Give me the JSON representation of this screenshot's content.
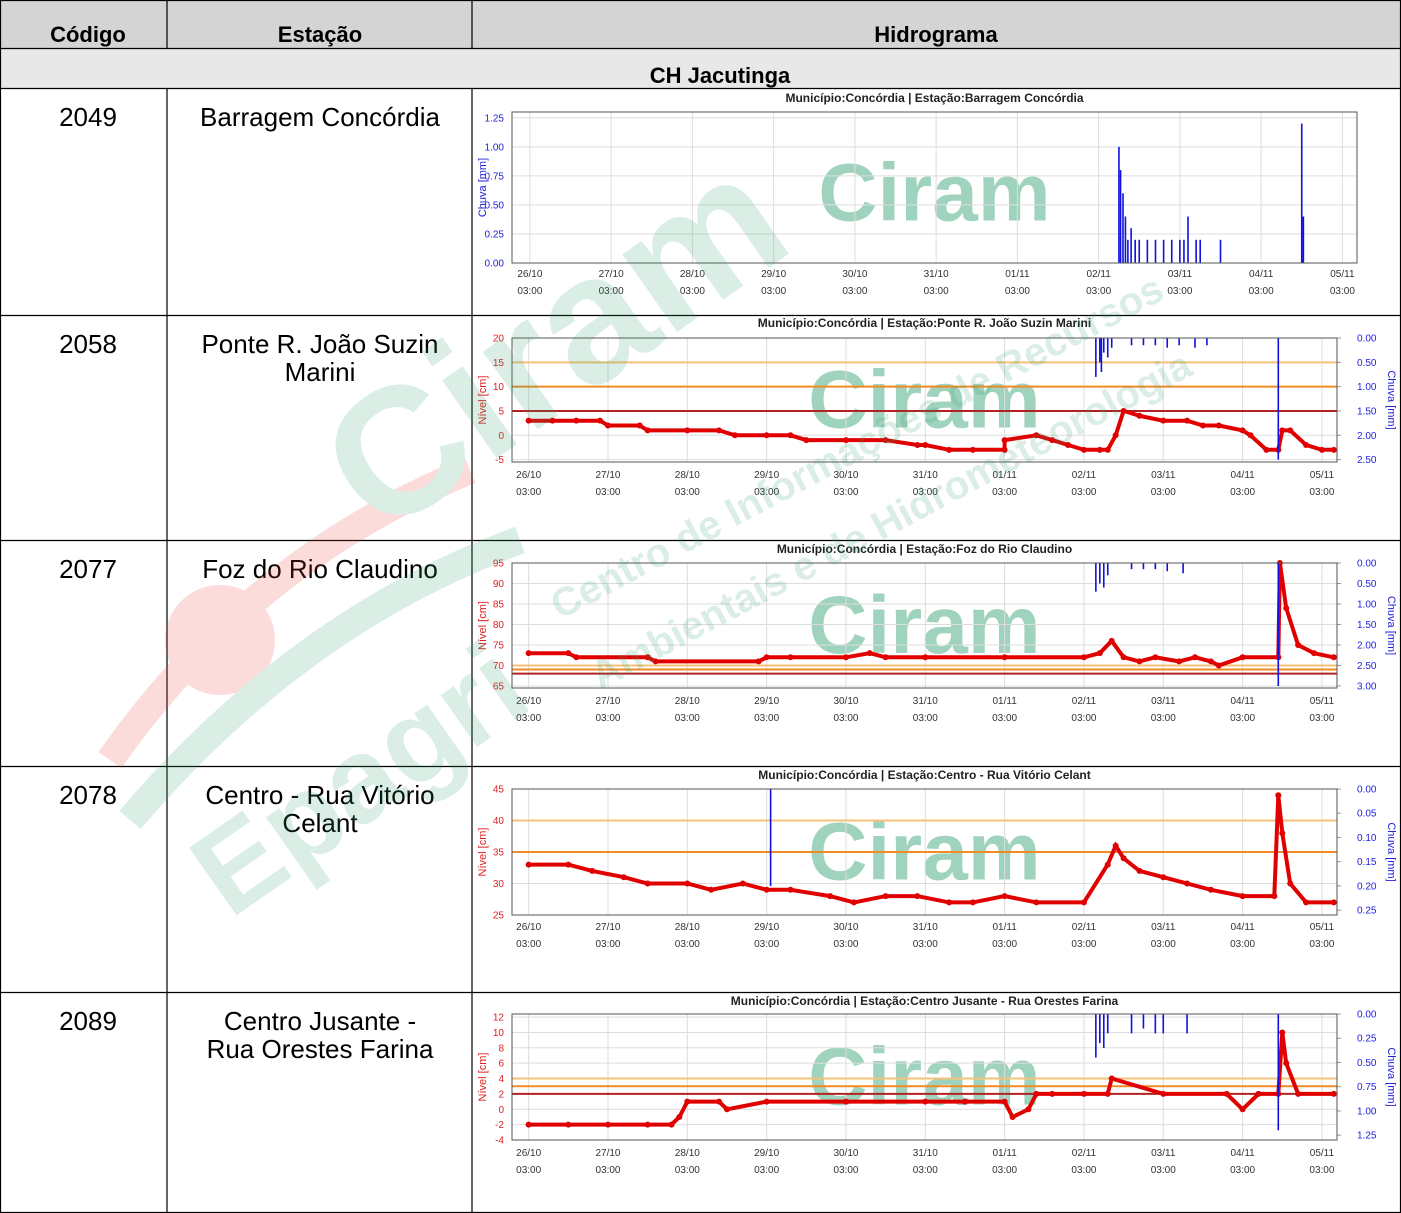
{
  "table": {
    "headers": [
      "Código",
      "Estação",
      "Hidrograma"
    ],
    "group": "CH Jacutinga",
    "rows": [
      {
        "code": "2049",
        "station": [
          "Barragem Concórdia"
        ]
      },
      {
        "code": "2058",
        "station": [
          "Ponte R. João Suzin",
          "Marini"
        ]
      },
      {
        "code": "2077",
        "station": [
          "Foz do Rio Claudino"
        ]
      },
      {
        "code": "2078",
        "station": [
          "Centro - Rua Vitório",
          "Celant"
        ]
      },
      {
        "code": "2089",
        "station": [
          "Centro Jusante -",
          "Rua Orestes Farina"
        ]
      }
    ]
  },
  "watermark": {
    "brand": "Epagri",
    "logo": "Ciram",
    "lines": [
      "Centro de Informações de Recursos",
      "Ambientais e de Hidrometeorologia"
    ]
  },
  "chart_data": [
    {
      "type": "line",
      "title": "Município:Concórdia | Estação:Barragem Concórdia",
      "watermark": "Ciram",
      "xlim": [
        -0.22,
        10.18
      ],
      "xticks": [
        {
          "value": 0,
          "label": "26/10",
          "time": "03:00"
        },
        {
          "value": 1,
          "label": "27/10",
          "time": "03:00"
        },
        {
          "value": 2,
          "label": "28/10",
          "time": "03:00"
        },
        {
          "value": 3,
          "label": "29/10",
          "time": "03:00"
        },
        {
          "value": 4,
          "label": "30/10",
          "time": "03:00"
        },
        {
          "value": 5,
          "label": "31/10",
          "time": "03:00"
        },
        {
          "value": 6,
          "label": "01/11",
          "time": "03:00"
        },
        {
          "value": 7,
          "label": "02/11",
          "time": "03:00"
        },
        {
          "value": 8,
          "label": "03/11",
          "time": "03:00"
        },
        {
          "value": 9,
          "label": "04/11",
          "time": "03:00"
        },
        {
          "value": 10,
          "label": "05/11",
          "time": "03:00"
        }
      ],
      "ylim": [
        0,
        1.3
      ],
      "yticks": [
        {
          "value": 0,
          "label": "0.00"
        },
        {
          "value": 0.25,
          "label": "0.25"
        },
        {
          "value": 0.5,
          "label": "0.50"
        },
        {
          "value": 0.75,
          "label": "0.75"
        },
        {
          "value": 1,
          "label": "1.00"
        },
        {
          "value": 1.25,
          "label": "1.25"
        }
      ],
      "y_label": "Chuva [mm]",
      "y_color": "#2222dd",
      "grid": true,
      "hlines": [],
      "series": [
        {
          "style": "bar",
          "color": "#1010e0",
          "x": [
            7.25,
            7.27,
            7.3,
            7.33,
            7.36,
            7.4,
            7.45,
            7.5,
            7.6,
            7.7,
            7.8,
            7.9,
            8.0,
            8.05,
            8.1,
            8.2,
            8.25,
            8.5,
            9.5,
            9.52
          ],
          "values": [
            1.0,
            0.8,
            0.6,
            0.4,
            0.2,
            0.3,
            0.2,
            0.2,
            0.2,
            0.2,
            0.2,
            0.2,
            0.2,
            0.2,
            0.4,
            0.2,
            0.2,
            0.2,
            1.2,
            0.4
          ]
        }
      ]
    },
    {
      "type": "line",
      "title": "Município:Concórdia | Estação:Ponte R. João Suzin Marini",
      "watermark": "Ciram",
      "xlim": [
        -0.21,
        10.19
      ],
      "xticks": [
        {
          "value": 0,
          "label": "26/10",
          "time": "03:00"
        },
        {
          "value": 1,
          "label": "27/10",
          "time": "03:00"
        },
        {
          "value": 2,
          "label": "28/10",
          "time": "03:00"
        },
        {
          "value": 3,
          "label": "29/10",
          "time": "03:00"
        },
        {
          "value": 4,
          "label": "30/10",
          "time": "03:00"
        },
        {
          "value": 5,
          "label": "31/10",
          "time": "03:00"
        },
        {
          "value": 6,
          "label": "01/11",
          "time": "03:00"
        },
        {
          "value": 7,
          "label": "02/11",
          "time": "03:00"
        },
        {
          "value": 8,
          "label": "03/11",
          "time": "03:00"
        },
        {
          "value": 9,
          "label": "04/11",
          "time": "03:00"
        },
        {
          "value": 10,
          "label": "05/11",
          "time": "03:00"
        }
      ],
      "ylim": [
        -5.5,
        20
      ],
      "yticks": [
        -5,
        0,
        5,
        10,
        15,
        20
      ],
      "y_label": "Nível [cm]",
      "y_color": "#e02020",
      "y2lim": [
        2.55,
        0
      ],
      "y2ticks": [
        {
          "value": 0,
          "label": "0.00"
        },
        {
          "value": 0.5,
          "label": "0.50"
        },
        {
          "value": 1,
          "label": "1.00"
        },
        {
          "value": 1.5,
          "label": "1.50"
        },
        {
          "value": 2,
          "label": "2.00"
        },
        {
          "value": 2.5,
          "label": "2.50"
        }
      ],
      "y2_label": "Chuva [mm]",
      "y2_color": "#2222dd",
      "grid": true,
      "hlines": [
        {
          "value": 15,
          "color": "#f5c27a"
        },
        {
          "value": 10,
          "color": "#f08a24"
        },
        {
          "value": 5,
          "color": "#b22222"
        }
      ],
      "series": [
        {
          "style": "points",
          "color": "#e00000",
          "x": [
            0,
            0.3,
            0.6,
            0.9,
            1.0,
            1.4,
            1.5,
            2.0,
            2.4,
            2.6,
            3.0,
            3.3,
            3.5,
            4.0,
            4.5,
            4.9,
            5.0,
            5.3,
            5.6,
            6.0,
            6.0,
            6.4,
            6.6,
            6.8,
            7.0,
            7.2,
            7.3,
            7.4,
            7.5,
            7.7,
            8.0,
            8.3,
            8.5,
            8.7,
            9.0,
            9.1,
            9.3,
            9.45,
            9.5,
            9.6,
            9.8,
            10.0,
            10.15
          ],
          "values": [
            3,
            3,
            3,
            3,
            2,
            2,
            1,
            1,
            1,
            0,
            0,
            0,
            -1,
            -1,
            -1,
            -2,
            -2,
            -3,
            -3,
            -3,
            -1,
            0,
            -1,
            -2,
            -3,
            -3,
            -3,
            0,
            5,
            4,
            3,
            3,
            2,
            2,
            1,
            0,
            -3,
            -3,
            1,
            1,
            -2,
            -3,
            -3
          ]
        },
        {
          "style": "bar",
          "axis": "y2",
          "color": "#1010e0",
          "x": [
            7.15,
            7.2,
            7.22,
            7.25,
            7.3,
            7.35,
            7.6,
            7.75,
            7.9,
            8.05,
            8.2,
            8.4,
            8.55,
            9.45
          ],
          "values": [
            0.8,
            0.5,
            0.7,
            0.3,
            0.4,
            0.2,
            0.15,
            0.15,
            0.15,
            0.2,
            0.15,
            0.2,
            0.15,
            2.5
          ]
        }
      ]
    },
    {
      "type": "line",
      "title": "Município:Concórdia | Estação:Foz do Rio Claudino",
      "watermark": "Ciram",
      "xlim": [
        -0.21,
        10.19
      ],
      "xticks": [
        {
          "value": 0,
          "label": "26/10",
          "time": "03:00"
        },
        {
          "value": 1,
          "label": "27/10",
          "time": "03:00"
        },
        {
          "value": 2,
          "label": "28/10",
          "time": "03:00"
        },
        {
          "value": 3,
          "label": "29/10",
          "time": "03:00"
        },
        {
          "value": 4,
          "label": "30/10",
          "time": "03:00"
        },
        {
          "value": 5,
          "label": "31/10",
          "time": "03:00"
        },
        {
          "value": 6,
          "label": "01/11",
          "time": "03:00"
        },
        {
          "value": 7,
          "label": "02/11",
          "time": "03:00"
        },
        {
          "value": 8,
          "label": "03/11",
          "time": "03:00"
        },
        {
          "value": 9,
          "label": "04/11",
          "time": "03:00"
        },
        {
          "value": 10,
          "label": "05/11",
          "time": "03:00"
        }
      ],
      "ylim": [
        64.5,
        95
      ],
      "yticks": [
        65,
        70,
        75,
        80,
        85,
        90,
        95
      ],
      "y_label": "Nível [cm]",
      "y_color": "#e02020",
      "y2lim": [
        3.05,
        0
      ],
      "y2ticks": [
        {
          "value": 0,
          "label": "0.00"
        },
        {
          "value": 0.5,
          "label": "0.50"
        },
        {
          "value": 1,
          "label": "1.00"
        },
        {
          "value": 1.5,
          "label": "1.50"
        },
        {
          "value": 2,
          "label": "2.00"
        },
        {
          "value": 2.5,
          "label": "2.50"
        },
        {
          "value": 3,
          "label": "3.00"
        }
      ],
      "y2_label": "Chuva [mm]",
      "y2_color": "#2222dd",
      "grid": true,
      "hlines": [
        {
          "value": 70,
          "color": "#f5c27a"
        },
        {
          "value": 69,
          "color": "#f08a24"
        },
        {
          "value": 68,
          "color": "#b22222"
        }
      ],
      "series": [
        {
          "style": "points",
          "color": "#e00000",
          "x": [
            0,
            0.5,
            0.6,
            1.5,
            1.6,
            2.9,
            3.0,
            3.3,
            4.0,
            4.3,
            4.5,
            5.0,
            6.0,
            7.0,
            7.2,
            7.35,
            7.5,
            7.7,
            7.9,
            8.2,
            8.4,
            8.6,
            8.7,
            9.0,
            9.45,
            9.47,
            9.55,
            9.7,
            9.9,
            10.15
          ],
          "values": [
            73,
            73,
            72,
            72,
            71,
            71,
            72,
            72,
            72,
            73,
            72,
            72,
            72,
            72,
            73,
            76,
            72,
            71,
            72,
            71,
            72,
            71,
            70,
            72,
            72,
            95,
            84,
            75,
            73,
            72
          ]
        },
        {
          "style": "bar",
          "axis": "y2",
          "color": "#1010e0",
          "x": [
            7.15,
            7.2,
            7.25,
            7.3,
            7.6,
            7.75,
            7.9,
            8.05,
            8.25,
            9.45
          ],
          "values": [
            0.7,
            0.5,
            0.6,
            0.3,
            0.15,
            0.15,
            0.15,
            0.2,
            0.25,
            3.0
          ]
        }
      ]
    },
    {
      "type": "line",
      "title": "Município:Concórdia | Estação:Centro - Rua Vitório Celant",
      "watermark": "Ciram",
      "xlim": [
        -0.21,
        10.19
      ],
      "xticks": [
        {
          "value": 0,
          "label": "26/10",
          "time": "03:00"
        },
        {
          "value": 1,
          "label": "27/10",
          "time": "03:00"
        },
        {
          "value": 2,
          "label": "28/10",
          "time": "03:00"
        },
        {
          "value": 3,
          "label": "29/10",
          "time": "03:00"
        },
        {
          "value": 4,
          "label": "30/10",
          "time": "03:00"
        },
        {
          "value": 5,
          "label": "31/10",
          "time": "03:00"
        },
        {
          "value": 6,
          "label": "01/11",
          "time": "03:00"
        },
        {
          "value": 7,
          "label": "02/11",
          "time": "03:00"
        },
        {
          "value": 8,
          "label": "03/11",
          "time": "03:00"
        },
        {
          "value": 9,
          "label": "04/11",
          "time": "03:00"
        },
        {
          "value": 10,
          "label": "05/11",
          "time": "03:00"
        }
      ],
      "ylim": [
        25,
        45
      ],
      "yticks": [
        25,
        30,
        35,
        40,
        45
      ],
      "y_label": "Nível [cm]",
      "y_color": "#e02020",
      "y2lim": [
        0.26,
        0
      ],
      "y2ticks": [
        {
          "value": 0,
          "label": "0.00"
        },
        {
          "value": 0.05,
          "label": "0.05"
        },
        {
          "value": 0.1,
          "label": "0.10"
        },
        {
          "value": 0.15,
          "label": "0.15"
        },
        {
          "value": 0.2,
          "label": "0.20"
        },
        {
          "value": 0.25,
          "label": "0.25"
        }
      ],
      "y2_label": "Chuva [mm]",
      "y2_color": "#2222dd",
      "grid": true,
      "hlines": [
        {
          "value": 40,
          "color": "#f5c27a"
        },
        {
          "value": 35,
          "color": "#f08a24"
        }
      ],
      "series": [
        {
          "style": "points",
          "color": "#e00000",
          "x": [
            0,
            0.5,
            0.8,
            1.2,
            1.5,
            2.0,
            2.3,
            2.7,
            3.0,
            3.3,
            3.8,
            4.1,
            4.5,
            4.9,
            5.3,
            5.6,
            6.0,
            6.4,
            7.0,
            7.3,
            7.4,
            7.5,
            7.7,
            8.0,
            8.3,
            8.6,
            9.0,
            9.4,
            9.45,
            9.5,
            9.6,
            9.8,
            10.15
          ],
          "values": [
            33,
            33,
            32,
            31,
            30,
            30,
            29,
            30,
            29,
            29,
            28,
            27,
            28,
            28,
            27,
            27,
            28,
            27,
            27,
            33,
            36,
            34,
            32,
            31,
            30,
            29,
            28,
            28,
            44,
            38,
            30,
            27,
            27
          ]
        },
        {
          "style": "bar",
          "axis": "y2",
          "color": "#1010e0",
          "x": [
            3.05
          ],
          "values": [
            0.2
          ]
        }
      ]
    },
    {
      "type": "line",
      "title": "Município:Concórdia | Estação:Centro Jusante - Rua Orestes Farina",
      "watermark": "Ciram",
      "xlim": [
        -0.21,
        10.19
      ],
      "xticks": [
        {
          "value": 0,
          "label": "26/10",
          "time": "03:00"
        },
        {
          "value": 1,
          "label": "27/10",
          "time": "03:00"
        },
        {
          "value": 2,
          "label": "28/10",
          "time": "03:00"
        },
        {
          "value": 3,
          "label": "29/10",
          "time": "03:00"
        },
        {
          "value": 4,
          "label": "30/10",
          "time": "03:00"
        },
        {
          "value": 5,
          "label": "31/10",
          "time": "03:00"
        },
        {
          "value": 6,
          "label": "01/11",
          "time": "03:00"
        },
        {
          "value": 7,
          "label": "02/11",
          "time": "03:00"
        },
        {
          "value": 8,
          "label": "03/11",
          "time": "03:00"
        },
        {
          "value": 9,
          "label": "04/11",
          "time": "03:00"
        },
        {
          "value": 10,
          "label": "05/11",
          "time": "03:00"
        }
      ],
      "ylim": [
        -4,
        12.4
      ],
      "yticks": [
        -4,
        -2,
        0,
        2,
        4,
        6,
        8,
        10,
        12
      ],
      "y_label": "Nível [cm]",
      "y_color": "#e02020",
      "y2lim": [
        1.3,
        0
      ],
      "y2ticks": [
        {
          "value": 0,
          "label": "0.00"
        },
        {
          "value": 0.25,
          "label": "0.25"
        },
        {
          "value": 0.5,
          "label": "0.50"
        },
        {
          "value": 0.75,
          "label": "0.75"
        },
        {
          "value": 1,
          "label": "1.00"
        },
        {
          "value": 1.25,
          "label": "1.25"
        }
      ],
      "y2_label": "Chuva [mm]",
      "y2_color": "#2222dd",
      "grid": true,
      "hlines": [
        {
          "value": 4,
          "color": "#f5c27a"
        },
        {
          "value": 3,
          "color": "#f08a24"
        },
        {
          "value": 2,
          "color": "#b22222"
        }
      ],
      "series": [
        {
          "style": "points",
          "color": "#e00000",
          "x": [
            0,
            0.5,
            1.0,
            1.5,
            1.8,
            1.9,
            2.0,
            2.4,
            2.5,
            3.0,
            4.0,
            5.0,
            5.5,
            6.0,
            6.1,
            6.3,
            6.4,
            6.6,
            7.0,
            7.3,
            7.35,
            8.0,
            8.8,
            9.0,
            9.2,
            9.45,
            9.5,
            9.55,
            9.7,
            10.15
          ],
          "values": [
            -2,
            -2,
            -2,
            -2,
            -2,
            -1,
            1,
            1,
            0,
            1,
            1,
            1,
            1,
            1,
            -1,
            0,
            2,
            2,
            2,
            2,
            4,
            2,
            2,
            0,
            2,
            2,
            10,
            6,
            2,
            2
          ]
        },
        {
          "style": "bar",
          "axis": "y2",
          "color": "#1010e0",
          "x": [
            7.15,
            7.2,
            7.25,
            7.3,
            7.6,
            7.75,
            7.9,
            8.0,
            8.3,
            9.45
          ],
          "values": [
            0.45,
            0.3,
            0.35,
            0.2,
            0.2,
            0.15,
            0.2,
            0.2,
            0.2,
            1.2
          ]
        }
      ]
    }
  ]
}
